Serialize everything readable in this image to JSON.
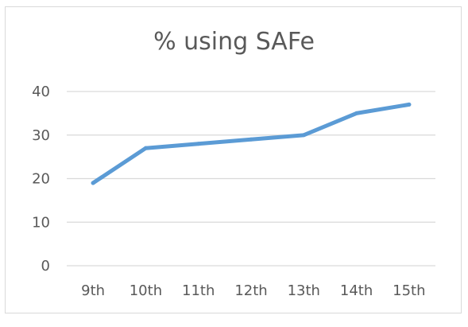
{
  "chart_data": {
    "type": "line",
    "title": "% using SAFe",
    "xlabel": "",
    "ylabel": "",
    "categories": [
      "9th",
      "10th",
      "11th",
      "12th",
      "13th",
      "14th",
      "15th"
    ],
    "series": [
      {
        "values": [
          19,
          27,
          28,
          29,
          30,
          35,
          37
        ]
      }
    ],
    "ylim": [
      0,
      40
    ],
    "yticks": [
      0,
      10,
      20,
      30,
      40
    ],
    "grid": true,
    "legend": "none",
    "line_color": "#5b9bd5",
    "grid_color": "#d9d9d9",
    "text_color": "#595959"
  }
}
